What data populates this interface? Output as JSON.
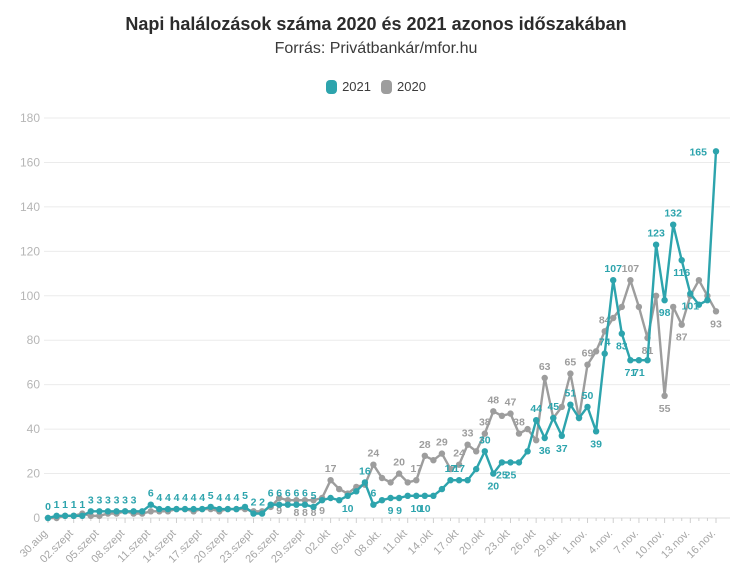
{
  "title": "Napi halálozások száma 2020 és 2021 azonos időszakában",
  "subtitle": "Forrás: Privátbankár/mfor.hu",
  "legend": [
    {
      "label": "2021",
      "color": "#2da4ad"
    },
    {
      "label": "2020",
      "color": "#9d9d9d"
    }
  ],
  "colors": {
    "accent_teal": "#2da4ad",
    "series_gray": "#9d9d9d",
    "grid": "#ebebeb",
    "axis_line": "#dcdcdc",
    "tick": "#cfcfcf",
    "y_label": "#b6b6b6",
    "x_label": "#a6a6a6",
    "title": "#2c2c2c",
    "background": "#ffffff"
  },
  "chart_data": {
    "type": "line",
    "title": "Napi halálozások száma 2020 és 2021 azonos időszakában",
    "subtitle": "Forrás: Privátbankár/mfor.hu",
    "n_points": 79,
    "ylim": [
      0,
      180
    ],
    "y_ticks": [
      0,
      20,
      40,
      60,
      80,
      100,
      120,
      140,
      160,
      180
    ],
    "grid": true,
    "legend_position": "top",
    "x_tick_step": 3,
    "x_tick_labels": [
      "30.aug",
      "02.szept",
      "05.szept",
      "08.szept",
      "11.szept",
      "14.szept",
      "17.szept",
      "20.szept",
      "23.szept",
      "26.szept",
      "29.szept",
      "02.okt",
      "05.okt",
      "08.okt.",
      "11.okt",
      "14.okt",
      "17.okt",
      "20.okt",
      "23.okt",
      "26.okt",
      "29.okt.",
      "1.nov.",
      "4.nov.",
      "7.nov.",
      "10.nov.",
      "13.nov.",
      "16.nov."
    ],
    "series": [
      {
        "name": "2021",
        "color": "#2da4ad",
        "values": [
          0,
          1,
          1,
          1,
          1,
          3,
          3,
          3,
          3,
          3,
          3,
          3,
          6,
          4,
          4,
          4,
          4,
          4,
          4,
          5,
          4,
          4,
          4,
          5,
          2,
          2,
          6,
          6,
          6,
          6,
          6,
          5,
          8,
          9,
          8,
          10,
          12,
          16,
          6,
          8,
          9,
          9,
          10,
          10,
          10,
          10,
          13,
          17,
          17,
          17,
          22,
          30,
          20,
          25,
          25,
          25,
          30,
          44,
          36,
          45,
          37,
          51,
          45,
          50,
          39,
          74,
          107,
          83,
          71,
          71,
          71,
          123,
          98,
          132,
          116,
          101,
          96,
          98,
          165
        ],
        "labeled": [
          [
            0,
            "a"
          ],
          [
            1,
            "a"
          ],
          [
            2,
            "a"
          ],
          [
            3,
            "a"
          ],
          [
            4,
            "a"
          ],
          [
            5,
            "a"
          ],
          [
            6,
            "a"
          ],
          [
            7,
            "a"
          ],
          [
            8,
            "a"
          ],
          [
            9,
            "a"
          ],
          [
            10,
            "a"
          ],
          [
            12,
            "a"
          ],
          [
            13,
            "a"
          ],
          [
            14,
            "a"
          ],
          [
            15,
            "a"
          ],
          [
            16,
            "a"
          ],
          [
            17,
            "a"
          ],
          [
            18,
            "a"
          ],
          [
            19,
            "a"
          ],
          [
            20,
            "a"
          ],
          [
            21,
            "a"
          ],
          [
            22,
            "a"
          ],
          [
            23,
            "a"
          ],
          [
            24,
            "a"
          ],
          [
            25,
            "a"
          ],
          [
            26,
            "a"
          ],
          [
            27,
            "a"
          ],
          [
            28,
            "a"
          ],
          [
            29,
            "a"
          ],
          [
            30,
            "a"
          ],
          [
            31,
            "a"
          ],
          [
            35,
            "b"
          ],
          [
            37,
            "a"
          ],
          [
            38,
            "a"
          ],
          [
            40,
            "b"
          ],
          [
            41,
            "b"
          ],
          [
            43,
            "b"
          ],
          [
            44,
            "b"
          ],
          [
            47,
            "a"
          ],
          [
            48,
            "a"
          ],
          [
            51,
            "a"
          ],
          [
            52,
            "b"
          ],
          [
            53,
            "b"
          ],
          [
            54,
            "b"
          ],
          [
            57,
            "a"
          ],
          [
            58,
            "b"
          ],
          [
            59,
            "a"
          ],
          [
            60,
            "b"
          ],
          [
            61,
            "a"
          ],
          [
            63,
            "a"
          ],
          [
            64,
            "b"
          ],
          [
            65,
            "a"
          ],
          [
            66,
            "a"
          ],
          [
            67,
            "b"
          ],
          [
            68,
            "b"
          ],
          [
            69,
            "b"
          ],
          [
            71,
            "a"
          ],
          [
            72,
            "b"
          ],
          [
            73,
            "a"
          ],
          [
            74,
            "b"
          ],
          [
            75,
            "b"
          ],
          [
            78,
            "l"
          ]
        ]
      },
      {
        "name": "2020",
        "color": "#9d9d9d",
        "values": [
          0,
          0,
          1,
          1,
          2,
          1,
          1,
          2,
          2,
          3,
          2,
          2,
          3,
          3,
          3,
          4,
          4,
          3,
          4,
          4,
          3,
          4,
          4,
          4,
          3,
          3,
          5,
          9,
          8,
          8,
          8,
          8,
          9,
          17,
          13,
          11,
          14,
          15,
          24,
          18,
          16,
          20,
          16,
          17,
          28,
          26,
          29,
          22,
          24,
          33,
          30,
          38,
          48,
          46,
          47,
          38,
          40,
          35,
          63,
          45,
          50,
          65,
          45,
          69,
          75,
          84,
          90,
          95,
          107,
          95,
          81,
          100,
          55,
          95,
          87,
          100,
          107,
          100,
          93
        ],
        "labeled": [
          [
            27,
            "b"
          ],
          [
            29,
            "b"
          ],
          [
            30,
            "b"
          ],
          [
            31,
            "b"
          ],
          [
            32,
            "b"
          ],
          [
            33,
            "a"
          ],
          [
            38,
            "a"
          ],
          [
            41,
            "a"
          ],
          [
            43,
            "a"
          ],
          [
            44,
            "a"
          ],
          [
            46,
            "a"
          ],
          [
            48,
            "a"
          ],
          [
            49,
            "a"
          ],
          [
            51,
            "a"
          ],
          [
            52,
            "a"
          ],
          [
            54,
            "a"
          ],
          [
            55,
            "a"
          ],
          [
            58,
            "a"
          ],
          [
            61,
            "a"
          ],
          [
            63,
            "a"
          ],
          [
            65,
            "a"
          ],
          [
            68,
            "a"
          ],
          [
            70,
            "b"
          ],
          [
            72,
            "b"
          ],
          [
            74,
            "b"
          ],
          [
            78,
            "b"
          ]
        ]
      }
    ]
  }
}
